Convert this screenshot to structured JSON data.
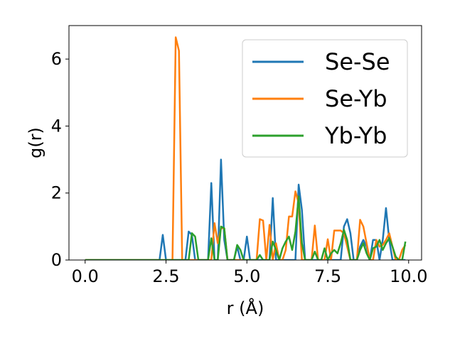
{
  "chart_data": {
    "type": "line",
    "title": "",
    "xlabel": "r (Å)",
    "ylabel": "g(r)",
    "xlim": [
      -0.5,
      10.4
    ],
    "ylim": [
      0,
      7.0
    ],
    "x_ticks": [
      0.0,
      2.5,
      5.0,
      7.5,
      10.0
    ],
    "x_tick_labels": [
      "0.0",
      "2.5",
      "5.0",
      "7.5",
      "10.0"
    ],
    "y_ticks": [
      0,
      2,
      4,
      6
    ],
    "y_tick_labels": [
      "0",
      "2",
      "4",
      "6"
    ],
    "grid": false,
    "legend_position": "top-right",
    "x": [
      0.0,
      0.1,
      0.2,
      0.3,
      0.4,
      0.5,
      0.6,
      0.7,
      0.8,
      0.9,
      1.0,
      1.1,
      1.2,
      1.3,
      1.4,
      1.5,
      1.6,
      1.7,
      1.8,
      1.9,
      2.0,
      2.1,
      2.2,
      2.3,
      2.4,
      2.5,
      2.6,
      2.7,
      2.8,
      2.9,
      3.0,
      3.1,
      3.2,
      3.3,
      3.4,
      3.5,
      3.6,
      3.7,
      3.8,
      3.9,
      4.0,
      4.1,
      4.2,
      4.3,
      4.4,
      4.5,
      4.6,
      4.7,
      4.8,
      4.9,
      5.0,
      5.1,
      5.2,
      5.3,
      5.4,
      5.5,
      5.6,
      5.7,
      5.8,
      5.9,
      6.0,
      6.1,
      6.2,
      6.3,
      6.4,
      6.5,
      6.6,
      6.7,
      6.8,
      6.9,
      7.0,
      7.1,
      7.2,
      7.3,
      7.4,
      7.5,
      7.6,
      7.7,
      7.8,
      7.9,
      8.0,
      8.1,
      8.2,
      8.3,
      8.4,
      8.5,
      8.6,
      8.7,
      8.8,
      8.9,
      9.0,
      9.1,
      9.2,
      9.3,
      9.4,
      9.5,
      9.6,
      9.7,
      9.8,
      9.9
    ],
    "series": [
      {
        "name": "Se-Se",
        "color": "#1f77b4",
        "values": [
          0,
          0,
          0,
          0,
          0,
          0,
          0,
          0,
          0,
          0,
          0,
          0,
          0,
          0,
          0,
          0,
          0,
          0,
          0,
          0,
          0,
          0,
          0,
          0,
          0.75,
          0,
          0,
          0,
          0,
          0,
          0,
          0,
          0.85,
          0.75,
          0,
          0,
          0,
          0,
          0,
          2.3,
          0,
          0,
          3.0,
          0.6,
          0,
          0,
          0,
          0.4,
          0,
          0,
          0.7,
          0,
          0,
          0,
          0,
          0,
          0,
          0,
          1.85,
          0,
          0,
          0,
          0,
          0,
          0,
          0,
          2.25,
          1.5,
          0,
          0,
          0,
          0,
          0,
          0,
          0,
          0,
          0,
          0,
          0,
          0,
          1.0,
          1.22,
          0.8,
          0,
          0,
          0.4,
          0.6,
          0.4,
          0,
          0.6,
          0.6,
          0,
          0.6,
          1.55,
          0.6,
          0,
          0,
          0,
          0,
          0
        ]
      },
      {
        "name": "Se-Yb",
        "color": "#ff7f0e",
        "values": [
          0,
          0,
          0,
          0,
          0,
          0,
          0,
          0,
          0,
          0,
          0,
          0,
          0,
          0,
          0,
          0,
          0,
          0,
          0,
          0,
          0,
          0,
          0,
          0,
          0,
          0,
          0,
          0,
          6.65,
          6.25,
          0,
          0,
          0,
          0,
          0,
          0,
          0,
          0,
          0,
          0,
          1.1,
          0.5,
          0.95,
          0.95,
          0,
          0,
          0,
          0,
          0,
          0,
          0,
          0,
          0,
          0,
          1.22,
          1.18,
          0,
          1.05,
          0,
          0.5,
          0,
          0,
          0.3,
          1.3,
          1.3,
          2.05,
          1.7,
          0,
          0,
          0,
          0,
          1.03,
          0,
          0,
          0,
          0.62,
          0,
          0.88,
          0.88,
          0.88,
          0.8,
          0.4,
          0,
          0,
          0,
          1.2,
          1.0,
          0.5,
          0,
          0,
          0.6,
          0.4,
          0.45,
          0.6,
          0.8,
          0.4,
          0,
          0,
          0.3,
          0.45
        ]
      },
      {
        "name": "Yb-Yb",
        "color": "#2ca02c",
        "values": [
          0,
          0,
          0,
          0,
          0,
          0,
          0,
          0,
          0,
          0,
          0,
          0,
          0,
          0,
          0,
          0,
          0,
          0,
          0,
          0,
          0,
          0,
          0,
          0,
          0,
          0,
          0,
          0,
          0,
          0,
          0,
          0,
          0,
          0.8,
          0.7,
          0,
          0,
          0,
          0,
          0.65,
          0,
          0,
          1.0,
          0.95,
          0,
          0,
          0,
          0.45,
          0.3,
          0,
          0,
          0,
          0,
          0,
          0.15,
          0,
          0,
          0,
          0.55,
          0.3,
          0,
          0.35,
          0.55,
          0.7,
          0.3,
          0.85,
          1.9,
          0.5,
          0,
          0,
          0,
          0.25,
          0,
          0,
          0.35,
          0,
          0.2,
          0.3,
          0.2,
          0.5,
          0.9,
          0.6,
          0,
          0,
          0,
          0.3,
          0.5,
          0.2,
          0,
          0.35,
          0.4,
          0.6,
          0.3,
          0.5,
          0.65,
          0.4,
          0.1,
          0,
          0,
          0.55
        ]
      }
    ]
  }
}
